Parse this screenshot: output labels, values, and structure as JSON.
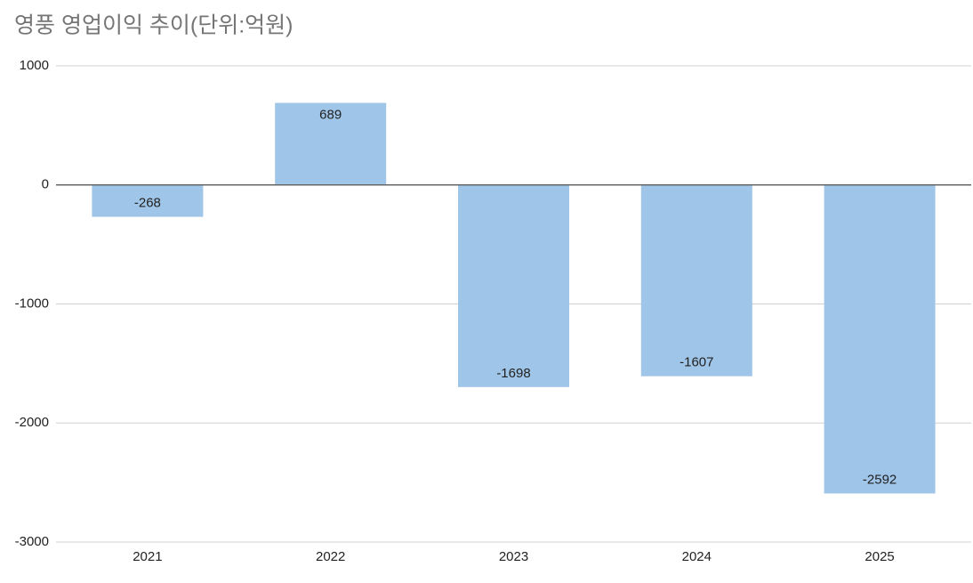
{
  "chart_data": {
    "type": "bar",
    "title": "영풍 영업이익 추이(단위:억원)",
    "categories": [
      "2021",
      "2022",
      "2023",
      "2024",
      "2025"
    ],
    "values": [
      -268,
      689,
      -1698,
      -1607,
      -2592
    ],
    "color": "#9fc5e8",
    "ylim": [
      -3000,
      1000
    ],
    "yticks": [
      -3000,
      -2000,
      -1000,
      0,
      1000
    ],
    "grid": true
  }
}
